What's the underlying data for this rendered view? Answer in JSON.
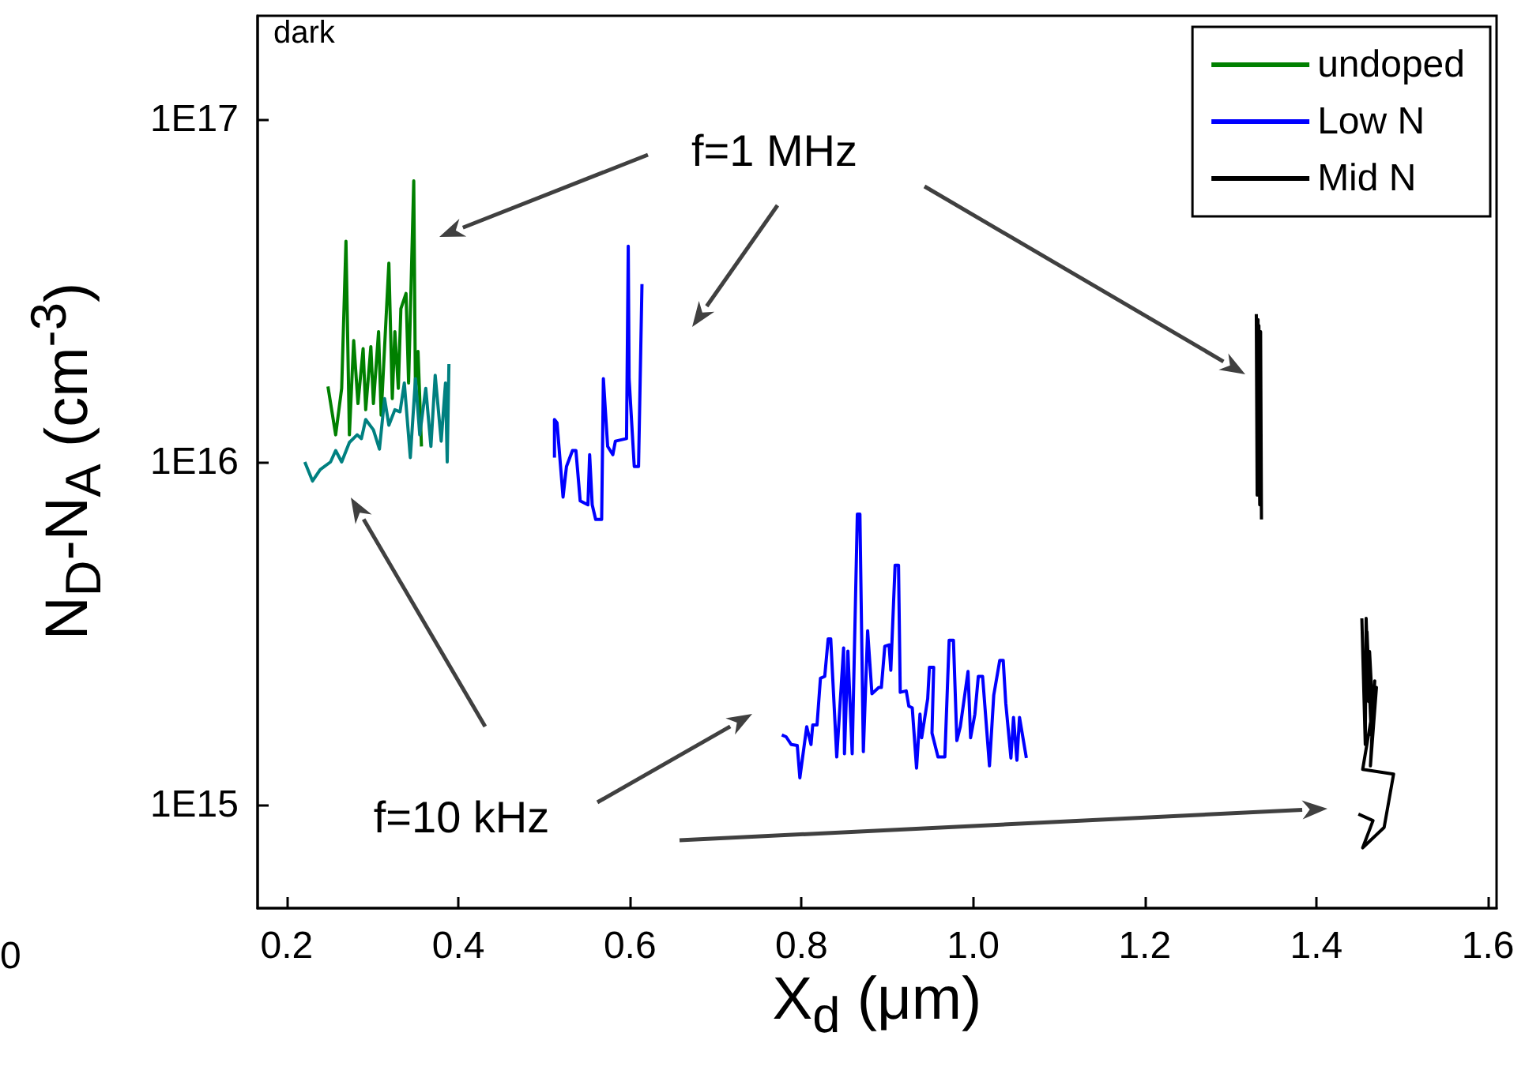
{
  "chart_data": {
    "type": "line",
    "xlabel": "X$_{d}$ (μm)",
    "ylabel": "N$_{D}$-N$_{A}$ (cm$^{-3}$)",
    "annotations": [
      "dark",
      "f=1 MHz",
      "f=10 kHz",
      "0"
    ],
    "log": "y",
    "grid": false,
    "legend": "top right",
    "xlim": [
      0.166,
      1.61
    ],
    "xticks": [
      {
        "value": 0.2,
        "label": "0.2"
      },
      {
        "value": 0.4,
        "label": "0.4"
      },
      {
        "value": 0.6,
        "label": "0.6"
      },
      {
        "value": 0.8,
        "label": "0.8"
      },
      {
        "value": 1.0,
        "label": "1.0"
      },
      {
        "value": 1.2,
        "label": "1.2"
      },
      {
        "value": 1.4,
        "label": "1.4"
      },
      {
        "value": 1.6,
        "label": "1.6"
      }
    ],
    "ylim": [
      500000000000000.0,
      2e+17
    ],
    "yticks": [
      {
        "value": 1000000000000000.0,
        "label": "1E15"
      },
      {
        "value": 1e+16,
        "label": "1E16"
      },
      {
        "value": 1e+17,
        "label": "1E17"
      }
    ],
    "series": [
      {
        "name": "undoped",
        "color": "#008000",
        "x": [
          0.248,
          0.257,
          0.264,
          0.269,
          0.273,
          0.278,
          0.283,
          0.289,
          0.292,
          0.298,
          0.301,
          0.307,
          0.31,
          0.319,
          0.323,
          0.326,
          0.33,
          0.333,
          0.339,
          0.342,
          0.348,
          0.35,
          0.353,
          0.357
        ],
        "values": [
          1.66e+16,
          1.2e+16,
          1.64e+16,
          4.4e+16,
          1.2e+16,
          2.26e+16,
          1.48e+16,
          2.14e+16,
          1.42e+16,
          2.17e+16,
          1.48e+16,
          2.4e+16,
          1.37e+16,
          3.8e+16,
          1.53e+16,
          2.4e+16,
          1.64e+16,
          2.8e+16,
          3.1e+16,
          1.7e+16,
          6.6e+16,
          1.58e+16,
          2.1e+16,
          1.11e+16
        ]
      },
      {
        "color": "#008080",
        "x": [
          0.221,
          0.23,
          0.239,
          0.251,
          0.257,
          0.264,
          0.273,
          0.282,
          0.287,
          0.292,
          0.301,
          0.308,
          0.314,
          0.319,
          0.326,
          0.332,
          0.337,
          0.344,
          0.35,
          0.355,
          0.362,
          0.368,
          0.373,
          0.38,
          0.385,
          0.387,
          0.389
        ],
        "values": [
          1e+16,
          8800000000000000.0,
          9500000000000000.0,
          1e+16,
          1.08e+16,
          1e+16,
          1.14e+16,
          1.2e+16,
          1.17e+16,
          1.33e+16,
          1.24e+16,
          1.09e+16,
          1.53e+16,
          1.28e+16,
          1.42e+16,
          1.4e+16,
          1.7e+16,
          1.03e+16,
          1.75e+16,
          1.2e+16,
          1.64e+16,
          1.11e+16,
          1.79e+16,
          1.15e+16,
          1.7e+16,
          1e+16,
          1.93e+16
        ]
      },
      {
        "name": "Low N",
        "color": "#0000ff",
        "x": [
          0.512,
          0.512,
          0.515,
          0.522,
          0.526,
          0.533,
          0.537,
          0.542,
          0.551,
          0.553,
          0.556,
          0.56,
          0.567,
          0.569,
          0.574,
          0.58,
          0.583,
          0.596,
          0.598,
          0.599,
          0.605,
          0.61,
          0.614
        ],
        "values": [
          1.03e+16,
          1.33e+16,
          1.3e+16,
          7900000000000000.0,
          9700000000000000.0,
          1.08e+16,
          1.08e+16,
          7700000000000000.0,
          7500000000000000.0,
          1.05e+16,
          7500000000000000.0,
          6800000000000000.0,
          6800000000000000.0,
          1.75e+16,
          1.11e+16,
          1.05e+16,
          1.15e+16,
          1.17e+16,
          4.26e+16,
          1.75e+16,
          9700000000000000.0,
          9700000000000000.0,
          3.3e+16
        ]
      },
      {
        "color": "#0000ff",
        "x": [
          0.777,
          0.782,
          0.788,
          0.795,
          0.798,
          0.806,
          0.811,
          0.813,
          0.818,
          0.822,
          0.827,
          0.831,
          0.834,
          0.841,
          0.849,
          0.85,
          0.854,
          0.859,
          0.865,
          0.868,
          0.872,
          0.877,
          0.882,
          0.89,
          0.893,
          0.897,
          0.902,
          0.904,
          0.909,
          0.913,
          0.915,
          0.922,
          0.925,
          0.929,
          0.934,
          0.938,
          0.94,
          0.947,
          0.949,
          0.954,
          0.952,
          0.959,
          0.967,
          0.972,
          0.977,
          0.981,
          0.985,
          0.994,
          0.997,
          1.002,
          1.006,
          1.011,
          1.019,
          1.024,
          1.031,
          1.035,
          1.038,
          1.044,
          1.047,
          1.051,
          1.054,
          1.062
        ],
        "values": [
          1600000000000000.0,
          1580000000000000.0,
          1500000000000000.0,
          1490000000000000.0,
          1200000000000000.0,
          1690000000000000.0,
          1500000000000000.0,
          1710000000000000.0,
          1710000000000000.0,
          2340000000000000.0,
          2370000000000000.0,
          3050000000000000.0,
          3050000000000000.0,
          1380000000000000.0,
          2870000000000000.0,
          1410000000000000.0,
          2810000000000000.0,
          1410000000000000.0,
          7050000000000000.0,
          7050000000000000.0,
          1430000000000000.0,
          3220000000000000.0,
          2110000000000000.0,
          2200000000000000.0,
          2200000000000000.0,
          2900000000000000.0,
          2930000000000000.0,
          2470000000000000.0,
          5000000000000000.0,
          5000000000000000.0,
          2130000000000000.0,
          2150000000000000.0,
          1940000000000000.0,
          1920000000000000.0,
          1280000000000000.0,
          1840000000000000.0,
          1570000000000000.0,
          2040000000000000.0,
          2520000000000000.0,
          2520000000000000.0,
          1620000000000000.0,
          1380000000000000.0,
          1380000000000000.0,
          3020000000000000.0,
          3020000000000000.0,
          1540000000000000.0,
          1690000000000000.0,
          2450000000000000.0,
          1570000000000000.0,
          1840000000000000.0,
          2370000000000000.0,
          2370000000000000.0,
          1300000000000000.0,
          2090000000000000.0,
          2640000000000000.0,
          2640000000000000.0,
          1980000000000000.0,
          1370000000000000.0,
          1800000000000000.0,
          1350000000000000.0,
          1800000000000000.0,
          1370000000000000.0
        ]
      },
      {
        "name": "Mid N",
        "color": "#000000",
        "x": [
          1.33,
          1.331,
          1.332,
          1.331,
          1.333,
          1.334,
          1.332,
          1.334,
          1.335,
          1.336
        ],
        "values": [
          2.7e+16,
          8000000000000000.0,
          2.6e+16,
          1e+16,
          2.5e+16,
          7500000000000000.0,
          2.2e+16,
          1.2e+16,
          2.4e+16,
          6800000000000000.0
        ]
      },
      {
        "color": "#000000",
        "x": [
          1.453,
          1.457,
          1.458,
          1.461,
          1.459,
          1.464,
          1.462,
          1.466,
          1.468,
          1.463,
          1.47,
          1.454,
          1.49,
          1.479,
          1.454,
          1.466,
          1.449
        ],
        "values": [
          3500000000000000.0,
          1500000000000000.0,
          3500000000000000.0,
          2000000000000000.0,
          3200000000000000.0,
          1600000000000000.0,
          2800000000000000.0,
          1800000000000000.0,
          2300000000000000.0,
          1300000000000000.0,
          2200000000000000.0,
          1270000000000000.0,
          1230000000000000.0,
          860000000000000.0,
          750000000000000.0,
          900000000000000.0,
          940000000000000.0
        ]
      }
    ]
  }
}
